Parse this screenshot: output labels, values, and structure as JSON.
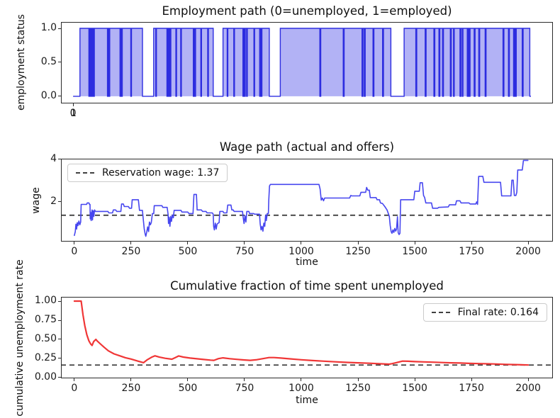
{
  "figure": {
    "background": "#ffffff",
    "spine_color": "#2b2b2b"
  },
  "chart_data": [
    {
      "id": "employment-path",
      "type": "area",
      "title": "Employment path (0=unemployed, 1=employed)",
      "ylabel": "employment status",
      "xlim": [
        -53,
        2096
      ],
      "ylim": [
        -0.105,
        1.094
      ],
      "xticks": {
        "values": [
          0,
          1
        ],
        "labels": [
          "0",
          "1"
        ]
      },
      "yticks": {
        "values": [
          0.0,
          0.5,
          1.0
        ],
        "labels": [
          "0.0",
          "0.5",
          "1.0"
        ]
      },
      "line_color": "#2d2de0",
      "fill_color": "#b2b2f5",
      "t_end": 2000,
      "employed_segments": [
        [
          30,
          69
        ],
        [
          72,
          76
        ],
        [
          79,
          83
        ],
        [
          86,
          90
        ],
        [
          93,
          150
        ],
        [
          153,
          157
        ],
        [
          160,
          205
        ],
        [
          208,
          212
        ],
        [
          215,
          252
        ],
        [
          255,
          303
        ],
        [
          352,
          361
        ],
        [
          364,
          410
        ],
        [
          413,
          417
        ],
        [
          420,
          424
        ],
        [
          427,
          449
        ],
        [
          452,
          470
        ],
        [
          473,
          525
        ],
        [
          528,
          532
        ],
        [
          535,
          558
        ],
        [
          561,
          588
        ],
        [
          591,
          612
        ],
        [
          655,
          673
        ],
        [
          676,
          702
        ],
        [
          705,
          742
        ],
        [
          745,
          749
        ],
        [
          752,
          758
        ],
        [
          761,
          790
        ],
        [
          793,
          815
        ],
        [
          818,
          822
        ],
        [
          825,
          857
        ],
        [
          905,
          1078
        ],
        [
          1082,
          1180
        ],
        [
          1184,
          1262
        ],
        [
          1266,
          1272
        ],
        [
          1276,
          1310
        ],
        [
          1314,
          1352
        ],
        [
          1356,
          1388
        ],
        [
          1446,
          1497
        ],
        [
          1501,
          1538
        ],
        [
          1542,
          1576
        ],
        [
          1580,
          1598
        ],
        [
          1602,
          1614
        ],
        [
          1618,
          1648
        ],
        [
          1652,
          1662
        ],
        [
          1665,
          1690
        ],
        [
          1694,
          1700
        ],
        [
          1703,
          1722
        ],
        [
          1726,
          1730
        ],
        [
          1734,
          1752
        ],
        [
          1756,
          1772
        ],
        [
          1776,
          1800
        ],
        [
          1804,
          1878
        ],
        [
          1882,
          1902
        ],
        [
          1906,
          1924
        ],
        [
          1928,
          1932
        ],
        [
          1936,
          1962
        ],
        [
          1966,
          1995
        ]
      ]
    },
    {
      "id": "wage-path",
      "type": "line",
      "title": "Wage path (actual and offers)",
      "xlabel": "time",
      "ylabel": "wage",
      "xlim": [
        -59,
        2109
      ],
      "ylim": [
        0.13,
        4.03
      ],
      "xticks": {
        "values": [
          0,
          250,
          500,
          750,
          1000,
          1250,
          1500,
          1750,
          2000
        ],
        "labels": [
          "0",
          "250",
          "500",
          "750",
          "1000",
          "1250",
          "1500",
          "1750",
          "2000"
        ]
      },
      "yticks": {
        "values": [
          2,
          4
        ],
        "labels": [
          "2",
          "4"
        ]
      },
      "line_color": "#4646ef",
      "line_width": 1.6,
      "hline": {
        "value": 1.37,
        "color": "#404040"
      },
      "legend": {
        "label": "Reservation wage: 1.37"
      },
      "points": [
        [
          0,
          0.42
        ],
        [
          4,
          0.6
        ],
        [
          7,
          0.95
        ],
        [
          10,
          0.72
        ],
        [
          13,
          1.02
        ],
        [
          16,
          0.88
        ],
        [
          20,
          1.1
        ],
        [
          24,
          0.92
        ],
        [
          28,
          1.05
        ],
        [
          30,
          1.88
        ],
        [
          54,
          1.88
        ],
        [
          57,
          1.95
        ],
        [
          64,
          1.95
        ],
        [
          67,
          1.88
        ],
        [
          69,
          1.88
        ],
        [
          70,
          1.2
        ],
        [
          72,
          1.5
        ],
        [
          74,
          1.12
        ],
        [
          76,
          1.45
        ],
        [
          78,
          1.62
        ],
        [
          80,
          1.15
        ],
        [
          83,
          1.58
        ],
        [
          86,
          1.32
        ],
        [
          89,
          1.62
        ],
        [
          93,
          1.55
        ],
        [
          148,
          1.55
        ],
        [
          152,
          1.48
        ],
        [
          168,
          1.48
        ],
        [
          172,
          1.62
        ],
        [
          182,
          1.62
        ],
        [
          187,
          1.55
        ],
        [
          205,
          1.55
        ],
        [
          208,
          1.9
        ],
        [
          216,
          1.9
        ],
        [
          220,
          1.78
        ],
        [
          238,
          1.78
        ],
        [
          243,
          1.7
        ],
        [
          252,
          1.7
        ],
        [
          255,
          2.1
        ],
        [
          282,
          2.1
        ],
        [
          287,
          1.6
        ],
        [
          300,
          1.6
        ],
        [
          304,
          1.15
        ],
        [
          308,
          0.72
        ],
        [
          312,
          0.48
        ],
        [
          315,
          0.38
        ],
        [
          319,
          0.58
        ],
        [
          323,
          0.82
        ],
        [
          327,
          0.6
        ],
        [
          331,
          1.05
        ],
        [
          335,
          0.92
        ],
        [
          339,
          1.02
        ],
        [
          344,
          1.45
        ],
        [
          350,
          1.45
        ],
        [
          352,
          1.82
        ],
        [
          386,
          1.82
        ],
        [
          390,
          1.74
        ],
        [
          409,
          1.74
        ],
        [
          413,
          1.42
        ],
        [
          415,
          0.98
        ],
        [
          418,
          1.28
        ],
        [
          421,
          0.85
        ],
        [
          425,
          1.32
        ],
        [
          428,
          1.08
        ],
        [
          432,
          1.38
        ],
        [
          436,
          1.25
        ],
        [
          440,
          1.6
        ],
        [
          470,
          1.6
        ],
        [
          474,
          1.52
        ],
        [
          500,
          1.52
        ],
        [
          505,
          1.45
        ],
        [
          523,
          1.45
        ],
        [
          527,
          2.35
        ],
        [
          538,
          2.35
        ],
        [
          541,
          1.62
        ],
        [
          560,
          1.62
        ],
        [
          565,
          1.55
        ],
        [
          580,
          1.55
        ],
        [
          585,
          1.48
        ],
        [
          608,
          1.48
        ],
        [
          612,
          1.42
        ],
        [
          614,
          0.85
        ],
        [
          617,
          0.68
        ],
        [
          621,
          1.0
        ],
        [
          625,
          0.72
        ],
        [
          629,
          0.95
        ],
        [
          634,
          1.0
        ],
        [
          638,
          1.02
        ],
        [
          641,
          1.55
        ],
        [
          655,
          1.55
        ],
        [
          659,
          1.48
        ],
        [
          672,
          1.48
        ],
        [
          676,
          1.85
        ],
        [
          690,
          1.85
        ],
        [
          694,
          1.62
        ],
        [
          700,
          1.62
        ],
        [
          704,
          1.55
        ],
        [
          741,
          1.55
        ],
        [
          744,
          1.28
        ],
        [
          748,
          0.98
        ],
        [
          752,
          1.35
        ],
        [
          756,
          1.05
        ],
        [
          760,
          1.55
        ],
        [
          769,
          1.55
        ],
        [
          772,
          1.45
        ],
        [
          790,
          1.45
        ],
        [
          794,
          1.42
        ],
        [
          816,
          1.42
        ],
        [
          819,
          0.95
        ],
        [
          823,
          0.68
        ],
        [
          827,
          0.85
        ],
        [
          831,
          0.62
        ],
        [
          835,
          1.0
        ],
        [
          839,
          0.85
        ],
        [
          843,
          1.38
        ],
        [
          846,
          1.12
        ],
        [
          850,
          1.45
        ],
        [
          855,
          1.45
        ],
        [
          857,
          2.1
        ],
        [
          860,
          2.75
        ],
        [
          864,
          2.82
        ],
        [
          1078,
          2.82
        ],
        [
          1083,
          2.6
        ],
        [
          1088,
          2.08
        ],
        [
          1093,
          2.18
        ],
        [
          1098,
          2.05
        ],
        [
          1103,
          2.18
        ],
        [
          1213,
          2.18
        ],
        [
          1218,
          2.3
        ],
        [
          1222,
          2.28
        ],
        [
          1258,
          2.28
        ],
        [
          1263,
          2.45
        ],
        [
          1284,
          2.45
        ],
        [
          1288,
          2.68
        ],
        [
          1293,
          2.55
        ],
        [
          1300,
          2.55
        ],
        [
          1304,
          2.2
        ],
        [
          1330,
          2.2
        ],
        [
          1334,
          2.1
        ],
        [
          1345,
          2.1
        ],
        [
          1349,
          1.95
        ],
        [
          1358,
          1.92
        ],
        [
          1368,
          1.78
        ],
        [
          1378,
          1.62
        ],
        [
          1388,
          1.32
        ],
        [
          1392,
          0.88
        ],
        [
          1396,
          0.6
        ],
        [
          1400,
          0.52
        ],
        [
          1404,
          0.68
        ],
        [
          1408,
          0.56
        ],
        [
          1412,
          0.75
        ],
        [
          1416,
          0.62
        ],
        [
          1420,
          0.72
        ],
        [
          1424,
          1.3
        ],
        [
          1427,
          0.55
        ],
        [
          1431,
          0.46
        ],
        [
          1435,
          0.52
        ],
        [
          1438,
          2.1
        ],
        [
          1496,
          2.1
        ],
        [
          1500,
          2.5
        ],
        [
          1520,
          2.5
        ],
        [
          1524,
          2.9
        ],
        [
          1534,
          2.9
        ],
        [
          1539,
          2.3
        ],
        [
          1544,
          2.2
        ],
        [
          1549,
          1.95
        ],
        [
          1574,
          1.95
        ],
        [
          1579,
          1.7
        ],
        [
          1601,
          1.7
        ],
        [
          1606,
          1.74
        ],
        [
          1648,
          1.76
        ],
        [
          1653,
          1.86
        ],
        [
          1680,
          1.86
        ],
        [
          1684,
          2.05
        ],
        [
          1699,
          2.05
        ],
        [
          1704,
          1.95
        ],
        [
          1739,
          1.95
        ],
        [
          1744,
          1.9
        ],
        [
          1769,
          1.9
        ],
        [
          1773,
          2.0
        ],
        [
          1777,
          1.88
        ],
        [
          1782,
          3.2
        ],
        [
          1800,
          3.2
        ],
        [
          1805,
          2.92
        ],
        [
          1878,
          2.92
        ],
        [
          1883,
          2.28
        ],
        [
          1924,
          2.28
        ],
        [
          1928,
          3.02
        ],
        [
          1934,
          3.02
        ],
        [
          1939,
          2.3
        ],
        [
          1946,
          2.3
        ],
        [
          1950,
          2.45
        ],
        [
          1954,
          3.5
        ],
        [
          1974,
          3.5
        ],
        [
          1979,
          3.95
        ],
        [
          1999,
          3.95
        ]
      ]
    },
    {
      "id": "cumulative-unemployment",
      "type": "line",
      "title": "Cumulative fraction of time spent unemployed",
      "xlabel": "time",
      "ylabel": "cumulative unemployment rate",
      "xlim": [
        -59,
        2109
      ],
      "ylim": [
        -0.01,
        1.056
      ],
      "xticks": {
        "values": [
          0,
          250,
          500,
          750,
          1000,
          1250,
          1500,
          1750,
          2000
        ],
        "labels": [
          "0",
          "250",
          "500",
          "750",
          "1000",
          "1250",
          "1500",
          "1750",
          "2000"
        ]
      },
      "yticks": {
        "values": [
          0.0,
          0.25,
          0.5,
          0.75,
          1.0
        ],
        "labels": [
          "0.00",
          "0.25",
          "0.50",
          "0.75",
          "1.00"
        ]
      },
      "line_color": "#f03636",
      "line_width": 2.2,
      "hline": {
        "value": 0.164,
        "color": "#404040"
      },
      "legend": {
        "label": "Final rate: 0.164"
      },
      "points": [
        [
          0,
          1.0
        ],
        [
          30,
          1.0
        ],
        [
          38,
          0.82
        ],
        [
          46,
          0.68
        ],
        [
          55,
          0.56
        ],
        [
          64,
          0.48
        ],
        [
          72,
          0.44
        ],
        [
          78,
          0.42
        ],
        [
          85,
          0.47
        ],
        [
          95,
          0.5
        ],
        [
          100,
          0.48
        ],
        [
          115,
          0.44
        ],
        [
          130,
          0.4
        ],
        [
          150,
          0.35
        ],
        [
          175,
          0.31
        ],
        [
          200,
          0.285
        ],
        [
          225,
          0.26
        ],
        [
          250,
          0.242
        ],
        [
          280,
          0.215
        ],
        [
          305,
          0.195
        ],
        [
          320,
          0.23
        ],
        [
          340,
          0.265
        ],
        [
          355,
          0.285
        ],
        [
          375,
          0.267
        ],
        [
          400,
          0.252
        ],
        [
          430,
          0.24
        ],
        [
          445,
          0.262
        ],
        [
          460,
          0.283
        ],
        [
          480,
          0.268
        ],
        [
          510,
          0.255
        ],
        [
          540,
          0.246
        ],
        [
          570,
          0.237
        ],
        [
          600,
          0.228
        ],
        [
          615,
          0.225
        ],
        [
          635,
          0.248
        ],
        [
          655,
          0.258
        ],
        [
          685,
          0.247
        ],
        [
          715,
          0.238
        ],
        [
          745,
          0.231
        ],
        [
          775,
          0.225
        ],
        [
          800,
          0.232
        ],
        [
          820,
          0.242
        ],
        [
          840,
          0.252
        ],
        [
          858,
          0.262
        ],
        [
          880,
          0.262
        ],
        [
          910,
          0.255
        ],
        [
          950,
          0.245
        ],
        [
          1000,
          0.233
        ],
        [
          1050,
          0.223
        ],
        [
          1100,
          0.214
        ],
        [
          1150,
          0.206
        ],
        [
          1200,
          0.199
        ],
        [
          1250,
          0.193
        ],
        [
          1300,
          0.187
        ],
        [
          1350,
          0.18
        ],
        [
          1388,
          0.175
        ],
        [
          1400,
          0.182
        ],
        [
          1420,
          0.196
        ],
        [
          1446,
          0.215
        ],
        [
          1470,
          0.213
        ],
        [
          1500,
          0.209
        ],
        [
          1540,
          0.205
        ],
        [
          1580,
          0.201
        ],
        [
          1620,
          0.197
        ],
        [
          1660,
          0.193
        ],
        [
          1700,
          0.19
        ],
        [
          1740,
          0.186
        ],
        [
          1780,
          0.183
        ],
        [
          1820,
          0.18
        ],
        [
          1860,
          0.177
        ],
        [
          1900,
          0.173
        ],
        [
          1940,
          0.17
        ],
        [
          1970,
          0.167
        ],
        [
          2000,
          0.164
        ]
      ]
    }
  ]
}
